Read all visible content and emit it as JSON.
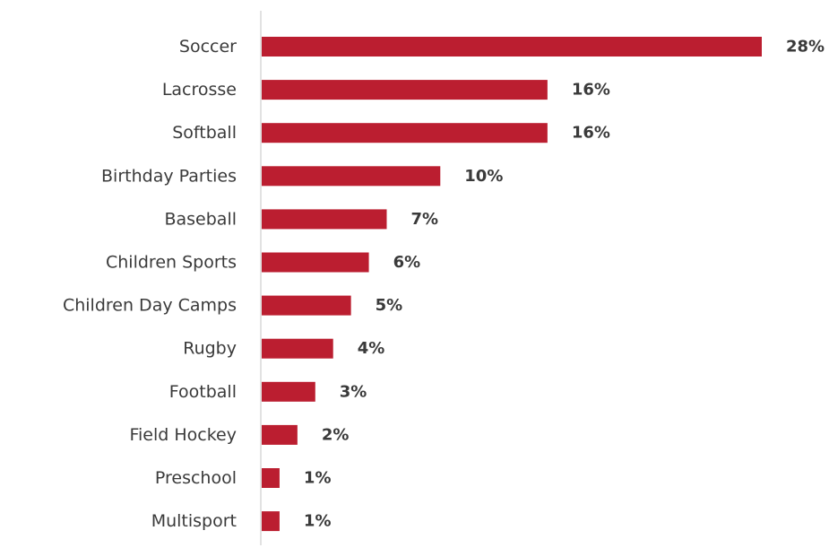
{
  "colors": {
    "bar": "#bb1e30",
    "text": "#3a3a3a",
    "axis": "#d9d9d9"
  },
  "chart_data": {
    "type": "bar",
    "orientation": "horizontal",
    "title": "",
    "xlabel": "",
    "ylabel": "",
    "value_suffix": "%",
    "grid": false,
    "legend": "none",
    "categories": [
      "Soccer",
      "Lacrosse",
      "Softball",
      "Birthday Parties",
      "Baseball",
      "Children Sports",
      "Children Day Camps",
      "Rugby",
      "Football",
      "Field Hockey",
      "Preschool",
      "Multisport"
    ],
    "values": [
      28,
      16,
      16,
      10,
      7,
      6,
      5,
      4,
      3,
      2,
      1,
      1
    ],
    "value_labels": [
      "28%",
      "16%",
      "16%",
      "10%",
      "7%",
      "6%",
      "5%",
      "4%",
      "3%",
      "2%",
      "1%",
      "1%"
    ],
    "xlim": [
      0,
      28
    ]
  }
}
